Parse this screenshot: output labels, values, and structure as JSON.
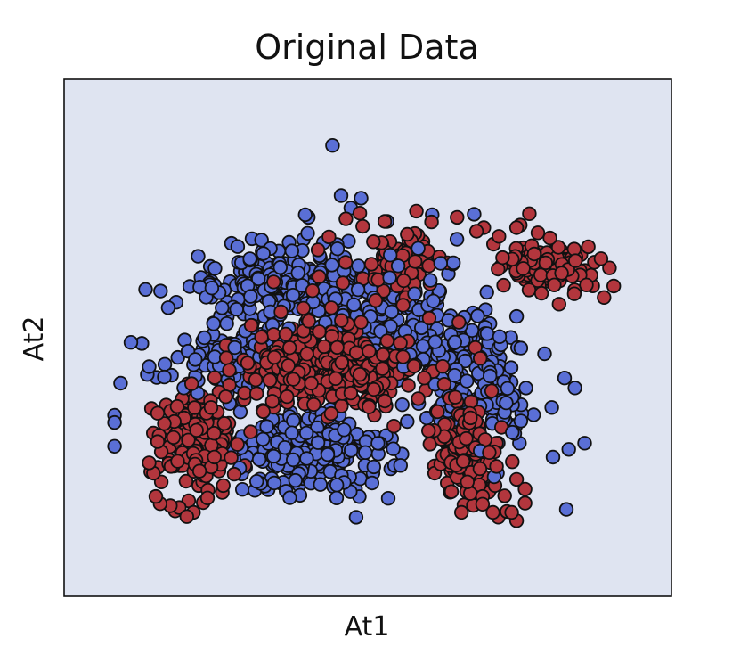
{
  "chart_data": {
    "type": "scatter",
    "title": "Original Data",
    "xlabel": "At1",
    "ylabel": "At2",
    "xticks": [],
    "yticks": [],
    "xlim": [
      0,
      100
    ],
    "ylim": [
      0,
      100
    ],
    "grid": false,
    "legend": "none",
    "colors": {
      "plot_background": "#dfe4f1",
      "marker_edge": "#111111",
      "class_0": "#5a6fd6",
      "class_1": "#b3363d"
    },
    "series": [
      {
        "color": "#5a6fd6",
        "points": [
          [
            44.2,
            87.2
          ],
          [
            48.9,
            77.0
          ],
          [
            60.6,
            73.8
          ],
          [
            67.5,
            73.9
          ],
          [
            40.2,
            73.3
          ],
          [
            39.7,
            73.8
          ],
          [
            34.1,
            59.9
          ],
          [
            34.6,
            61.6
          ],
          [
            42.2,
            62.6
          ],
          [
            28.1,
            48.1
          ],
          [
            24.8,
            46.3
          ],
          [
            21.3,
            44.8
          ],
          [
            16.5,
            42.4
          ],
          [
            13.7,
            42.9
          ],
          [
            14.0,
            44.4
          ],
          [
            20.4,
            47.4
          ],
          [
            21.6,
            45.8
          ],
          [
            19.7,
            40.3
          ],
          [
            22.0,
            39.3
          ],
          [
            12.8,
            48.9
          ],
          [
            12.8,
            48.9
          ],
          [
            11.0,
            49.1
          ],
          [
            9.3,
            41.2
          ],
          [
            8.3,
            35.0
          ],
          [
            8.3,
            33.6
          ],
          [
            8.3,
            29.0
          ],
          [
            23.1,
            50.0
          ],
          [
            24.6,
            52.7
          ],
          [
            26.0,
            55.8
          ],
          [
            32.0,
            61.4
          ],
          [
            37.5,
            66.8
          ],
          [
            42.7,
            68.4
          ],
          [
            40.1,
            70.2
          ],
          [
            47.2,
            75.1
          ],
          [
            53.2,
            72.5
          ],
          [
            58.3,
            67.3
          ],
          [
            55.0,
            63.9
          ],
          [
            48.4,
            59.3
          ],
          [
            51.0,
            57.7
          ],
          [
            46.3,
            57.5
          ],
          [
            47.7,
            56.4
          ],
          [
            60.8,
            57.1
          ],
          [
            68.1,
            54.2
          ],
          [
            71.7,
            50.2
          ],
          [
            73.6,
            44.2
          ],
          [
            73.0,
            40.2
          ],
          [
            72.8,
            37.4
          ],
          [
            75.2,
            33.9
          ],
          [
            73.8,
            31.7
          ],
          [
            68.5,
            28.1
          ],
          [
            82.4,
            42.2
          ],
          [
            80.3,
            36.5
          ],
          [
            84.1,
            40.3
          ],
          [
            85.7,
            29.6
          ],
          [
            83.1,
            28.4
          ],
          [
            80.5,
            26.9
          ],
          [
            82.7,
            16.8
          ],
          [
            55.4,
            25.3
          ],
          [
            50.7,
            21.9
          ],
          [
            46.1,
            22.0
          ],
          [
            44.9,
            21.5
          ],
          [
            42.2,
            21.6
          ],
          [
            38.1,
            22.4
          ],
          [
            34.6,
            21.9
          ],
          [
            31.7,
            22.2
          ],
          [
            28.9,
            24.8
          ],
          [
            37.5,
            31.6
          ],
          [
            43.4,
            27.4
          ],
          [
            49.6,
            27.8
          ],
          [
            54.2,
            28.5
          ],
          [
            56.5,
            33.8
          ],
          [
            61.1,
            41.0
          ],
          [
            61.7,
            47.5
          ],
          [
            65.3,
            52.3
          ],
          [
            69.6,
            58.8
          ],
          [
            60.3,
            61.1
          ],
          [
            57.7,
            58.5
          ],
          [
            64.1,
            64.5
          ],
          [
            53.6,
            61.6
          ],
          [
            55.9,
            44.4
          ],
          [
            61.1,
            49.2
          ],
          [
            75.2,
            48.0
          ],
          [
            79.1,
            46.9
          ],
          [
            70.8,
            23.1
          ],
          [
            37.0,
            51.8
          ],
          [
            41.0,
            56.9
          ],
          [
            44.7,
            57.5
          ],
          [
            28.4,
            55.5
          ],
          [
            35.6,
            63.6
          ],
          [
            32.8,
            66.3
          ],
          [
            45.0,
            67.2
          ],
          [
            53.7,
            66.0
          ],
          [
            62.0,
            64.4
          ],
          [
            30.7,
            58.0
          ],
          [
            45.6,
            77.5
          ]
        ]
      },
      {
        "color": "#b3363d",
        "points": [
          [
            64.7,
            73.3
          ],
          [
            69.1,
            71.3
          ],
          [
            70.7,
            68.1
          ],
          [
            71.6,
            69.6
          ],
          [
            73.8,
            65.2
          ],
          [
            75.6,
            63.4
          ],
          [
            77.0,
            67.8
          ],
          [
            77.4,
            66.2
          ],
          [
            79.3,
            64.5
          ],
          [
            81.9,
            62.5
          ],
          [
            84.2,
            64.9
          ],
          [
            87.3,
            64.6
          ],
          [
            86.0,
            60.2
          ],
          [
            88.9,
            57.8
          ],
          [
            89.8,
            63.5
          ],
          [
            88.4,
            65.3
          ],
          [
            86.3,
            67.6
          ],
          [
            81.4,
            67.5
          ],
          [
            78.0,
            70.3
          ],
          [
            75.1,
            71.8
          ],
          [
            76.6,
            74.0
          ],
          [
            74.5,
            71.3
          ],
          [
            72.2,
            65.5
          ],
          [
            80.0,
            69.3
          ],
          [
            80.7,
            60.2
          ],
          [
            78.6,
            58.6
          ],
          [
            81.5,
            56.5
          ],
          [
            84.0,
            58.5
          ],
          [
            90.5,
            60.0
          ],
          [
            67.9,
            70.6
          ],
          [
            56.5,
            70.0
          ],
          [
            60.5,
            72.4
          ],
          [
            58.0,
            74.5
          ],
          [
            52.8,
            72.5
          ],
          [
            48.7,
            74.1
          ],
          [
            46.4,
            73.0
          ],
          [
            43.6,
            69.5
          ],
          [
            41.8,
            67.0
          ],
          [
            42.0,
            61.8
          ],
          [
            40.9,
            59.1
          ],
          [
            45.9,
            60.6
          ],
          [
            51.3,
            57.2
          ],
          [
            55.8,
            56.3
          ],
          [
            60.1,
            53.8
          ],
          [
            65.0,
            53.0
          ],
          [
            67.7,
            48.1
          ],
          [
            68.5,
            46.0
          ],
          [
            70.4,
            39.7
          ],
          [
            66.9,
            34.5
          ],
          [
            66.2,
            30.5
          ],
          [
            65.8,
            26.3
          ],
          [
            66.4,
            22.1
          ],
          [
            68.9,
            19.3
          ],
          [
            68.9,
            17.8
          ],
          [
            71.5,
            15.3
          ],
          [
            70.6,
            16.2
          ],
          [
            72.9,
            16.4
          ],
          [
            74.5,
            14.6
          ],
          [
            73.7,
            16.2
          ],
          [
            75.9,
            18.0
          ],
          [
            75.9,
            20.7
          ],
          [
            74.5,
            22.6
          ],
          [
            73.8,
            26.0
          ],
          [
            71.2,
            25.1
          ],
          [
            70.0,
            27.8
          ],
          [
            65.7,
            26.1
          ],
          [
            60.0,
            32.0
          ],
          [
            54.3,
            32.9
          ],
          [
            50.2,
            36.6
          ],
          [
            47.2,
            39.3
          ],
          [
            44.7,
            42.1
          ],
          [
            40.7,
            41.2
          ],
          [
            36.7,
            38.6
          ],
          [
            32.8,
            35.7
          ],
          [
            30.7,
            31.8
          ],
          [
            27.5,
            26.8
          ],
          [
            28.0,
            23.6
          ],
          [
            26.2,
            21.4
          ],
          [
            22.9,
            18.1
          ],
          [
            23.6,
            19.0
          ],
          [
            21.3,
            16.2
          ],
          [
            20.2,
            15.4
          ],
          [
            17.5,
            17.5
          ],
          [
            15.8,
            17.9
          ],
          [
            15.1,
            19.3
          ],
          [
            16.0,
            22.1
          ],
          [
            14.7,
            23.8
          ],
          [
            14.0,
            25.8
          ],
          [
            15.4,
            29.9
          ],
          [
            16.5,
            33.4
          ],
          [
            18.6,
            36.7
          ],
          [
            21.0,
            41.1
          ],
          [
            24.8,
            42.3
          ],
          [
            26.7,
            46.1
          ],
          [
            30.2,
            45.1
          ],
          [
            32.5,
            50.1
          ],
          [
            36.5,
            50.7
          ],
          [
            40.3,
            53.2
          ],
          [
            44.0,
            55.8
          ],
          [
            39.4,
            55.7
          ],
          [
            35.7,
            55.0
          ],
          [
            30.8,
            52.4
          ],
          [
            27.2,
            43.7
          ],
          [
            21.8,
            32.1
          ],
          [
            17.6,
            25.1
          ],
          [
            18.7,
            26.1
          ],
          [
            22.3,
            24.2
          ],
          [
            34.6,
            46.2
          ],
          [
            36.9,
            44.6
          ],
          [
            45.7,
            45.2
          ],
          [
            50.2,
            47.4
          ],
          [
            53.2,
            49.4
          ],
          [
            55.8,
            46.3
          ],
          [
            57.6,
            44.5
          ],
          [
            59.3,
            42.2
          ],
          [
            64.4,
            38.5
          ],
          [
            62.6,
            41.0
          ],
          [
            58.3,
            38.2
          ],
          [
            51.0,
            40.0
          ],
          [
            48.7,
            42.9
          ],
          [
            42.8,
            48.3
          ],
          [
            31.7,
            39.2
          ],
          [
            24.2,
            36.5
          ],
          [
            15.4,
            35.4
          ],
          [
            48.9,
            53.0
          ],
          [
            34.5,
            60.8
          ]
        ]
      }
    ]
  }
}
